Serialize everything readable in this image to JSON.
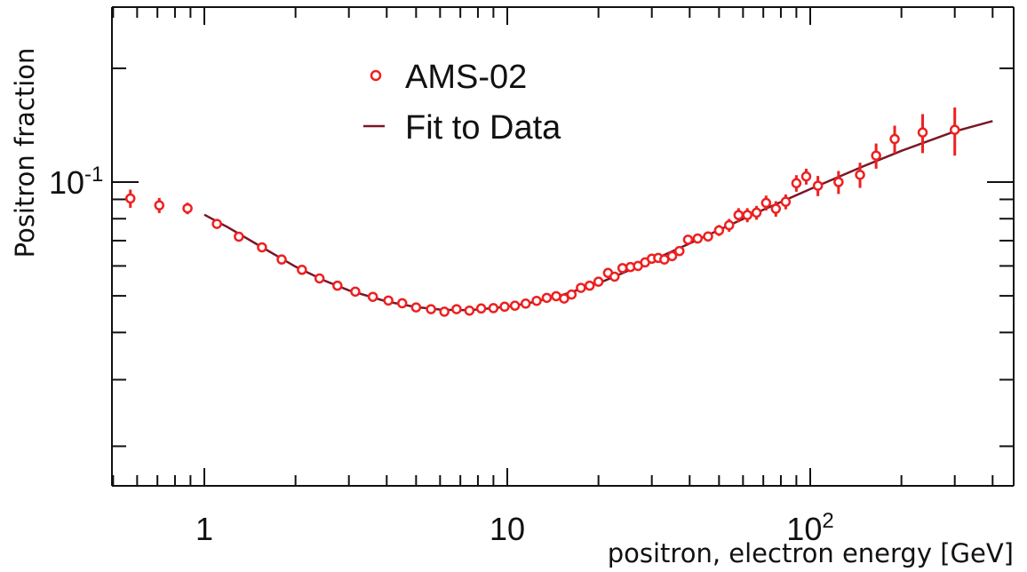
{
  "chart_data": {
    "type": "scatter",
    "title": "",
    "xlabel": "positron, electron energy [GeV]",
    "ylabel": "Positron fraction",
    "x_scale": "log",
    "y_scale": "log",
    "xlim": [
      0.5,
      500
    ],
    "ylim": [
      0.02,
      0.3
    ],
    "grid": false,
    "legend_placement": "top-left",
    "colors": {
      "points": "#ee2020",
      "fit": "#7a1626",
      "axes": "#111111"
    },
    "x_tick_labels": [
      {
        "value": 1,
        "text": "1"
      },
      {
        "value": 10,
        "text": "10"
      },
      {
        "value": 100,
        "base": "10",
        "exp": "2"
      }
    ],
    "y_tick_labels": [
      {
        "value": 0.1,
        "base": "10",
        "exp": "-1"
      }
    ],
    "legend": [
      {
        "label": "AMS-02",
        "kind": "marker"
      },
      {
        "label": "Fit to Data",
        "kind": "line"
      }
    ],
    "series": [
      {
        "name": "AMS-02",
        "kind": "points",
        "points": [
          {
            "x": 0.57,
            "y": 0.0905,
            "err": 0.005
          },
          {
            "x": 0.71,
            "y": 0.0868,
            "err": 0.004
          },
          {
            "x": 0.88,
            "y": 0.0852,
            "err": 0.003
          },
          {
            "x": 1.1,
            "y": 0.0775
          },
          {
            "x": 1.3,
            "y": 0.0717
          },
          {
            "x": 1.55,
            "y": 0.0672
          },
          {
            "x": 1.8,
            "y": 0.0624
          },
          {
            "x": 2.1,
            "y": 0.0586
          },
          {
            "x": 2.4,
            "y": 0.0556
          },
          {
            "x": 2.75,
            "y": 0.0532
          },
          {
            "x": 3.15,
            "y": 0.0513
          },
          {
            "x": 3.6,
            "y": 0.0497
          },
          {
            "x": 4.05,
            "y": 0.0486
          },
          {
            "x": 4.5,
            "y": 0.0478
          },
          {
            "x": 5.0,
            "y": 0.0466
          },
          {
            "x": 5.6,
            "y": 0.0461
          },
          {
            "x": 6.2,
            "y": 0.0454
          },
          {
            "x": 6.8,
            "y": 0.0461
          },
          {
            "x": 7.5,
            "y": 0.0457
          },
          {
            "x": 8.2,
            "y": 0.0463
          },
          {
            "x": 9.0,
            "y": 0.0464
          },
          {
            "x": 9.8,
            "y": 0.0468
          },
          {
            "x": 10.6,
            "y": 0.0471
          },
          {
            "x": 11.5,
            "y": 0.0477
          },
          {
            "x": 12.5,
            "y": 0.0485
          },
          {
            "x": 13.5,
            "y": 0.0494
          },
          {
            "x": 14.5,
            "y": 0.0499
          },
          {
            "x": 15.4,
            "y": 0.0492
          },
          {
            "x": 16.3,
            "y": 0.0504
          },
          {
            "x": 17.5,
            "y": 0.0525
          },
          {
            "x": 18.7,
            "y": 0.0532
          },
          {
            "x": 20.0,
            "y": 0.0545
          },
          {
            "x": 21.5,
            "y": 0.0575,
            "err": 0.0012
          },
          {
            "x": 22.6,
            "y": 0.0562,
            "err": 0.0012
          },
          {
            "x": 24.0,
            "y": 0.0592,
            "err": 0.0012
          },
          {
            "x": 25.5,
            "y": 0.0596,
            "err": 0.0012
          },
          {
            "x": 27.0,
            "y": 0.06,
            "err": 0.0013
          },
          {
            "x": 28.5,
            "y": 0.0613,
            "err": 0.0013
          },
          {
            "x": 30.0,
            "y": 0.0627,
            "err": 0.0015
          },
          {
            "x": 31.5,
            "y": 0.063,
            "err": 0.0015
          },
          {
            "x": 33.0,
            "y": 0.0624,
            "err": 0.0015
          },
          {
            "x": 35.0,
            "y": 0.0637,
            "err": 0.0016
          },
          {
            "x": 37.0,
            "y": 0.0657,
            "err": 0.0017
          },
          {
            "x": 39.5,
            "y": 0.0704,
            "err": 0.002
          },
          {
            "x": 42.5,
            "y": 0.0709,
            "err": 0.002
          },
          {
            "x": 46.0,
            "y": 0.0718,
            "err": 0.0022
          },
          {
            "x": 50.0,
            "y": 0.0745,
            "err": 0.0025
          },
          {
            "x": 54.0,
            "y": 0.0769,
            "err": 0.003
          },
          {
            "x": 58.0,
            "y": 0.0818,
            "err": 0.0035
          },
          {
            "x": 62.0,
            "y": 0.0818,
            "err": 0.0035
          },
          {
            "x": 66.5,
            "y": 0.083,
            "err": 0.0035
          },
          {
            "x": 71.5,
            "y": 0.0881,
            "err": 0.004
          },
          {
            "x": 77.0,
            "y": 0.085,
            "err": 0.004
          },
          {
            "x": 83.0,
            "y": 0.0887,
            "err": 0.004
          },
          {
            "x": 90.0,
            "y": 0.0993,
            "err": 0.005
          },
          {
            "x": 97.0,
            "y": 0.1035,
            "err": 0.005
          },
          {
            "x": 106.0,
            "y": 0.0978,
            "err": 0.006
          },
          {
            "x": 124.0,
            "y": 0.1,
            "err": 0.007
          },
          {
            "x": 146.0,
            "y": 0.1045,
            "err": 0.008
          },
          {
            "x": 165.0,
            "y": 0.1175,
            "err": 0.009
          },
          {
            "x": 190.0,
            "y": 0.13,
            "err": 0.011
          },
          {
            "x": 235.0,
            "y": 0.1353,
            "err": 0.016
          },
          {
            "x": 300.0,
            "y": 0.1375,
            "err": 0.02
          }
        ]
      },
      {
        "name": "Fit to Data",
        "kind": "line",
        "points": [
          {
            "x": 1.0,
            "y": 0.082
          },
          {
            "x": 1.2,
            "y": 0.0758
          },
          {
            "x": 1.5,
            "y": 0.0683
          },
          {
            "x": 2.0,
            "y": 0.0597
          },
          {
            "x": 2.5,
            "y": 0.0548
          },
          {
            "x": 3.0,
            "y": 0.0517
          },
          {
            "x": 4.0,
            "y": 0.0483
          },
          {
            "x": 5.0,
            "y": 0.0467
          },
          {
            "x": 6.0,
            "y": 0.046
          },
          {
            "x": 7.0,
            "y": 0.0458
          },
          {
            "x": 8.0,
            "y": 0.046
          },
          {
            "x": 10.0,
            "y": 0.0468
          },
          {
            "x": 12.0,
            "y": 0.048
          },
          {
            "x": 15.0,
            "y": 0.0501
          },
          {
            "x": 20.0,
            "y": 0.054
          },
          {
            "x": 25.0,
            "y": 0.0582
          },
          {
            "x": 30.0,
            "y": 0.062
          },
          {
            "x": 40.0,
            "y": 0.0688
          },
          {
            "x": 50.0,
            "y": 0.0747
          },
          {
            "x": 70.0,
            "y": 0.0845
          },
          {
            "x": 100.0,
            "y": 0.0958
          },
          {
            "x": 150.0,
            "y": 0.1102
          },
          {
            "x": 200.0,
            "y": 0.121
          },
          {
            "x": 300.0,
            "y": 0.1362
          },
          {
            "x": 400.0,
            "y": 0.145
          }
        ]
      }
    ]
  }
}
